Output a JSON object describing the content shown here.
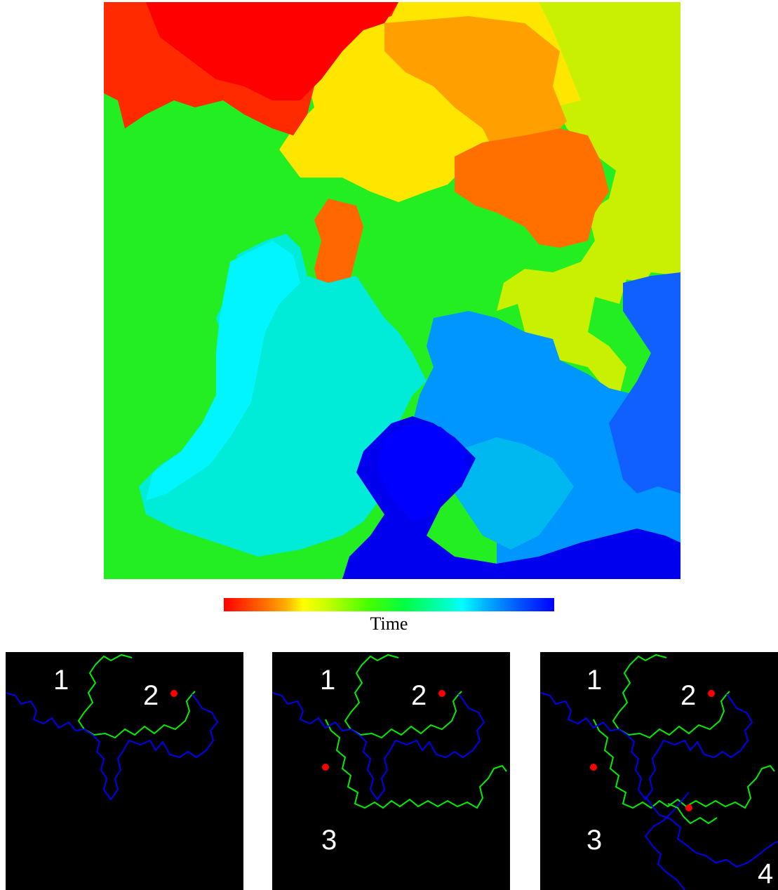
{
  "colorbar": {
    "label": "Time"
  },
  "panels": [
    {
      "labels": [
        "1",
        "2"
      ]
    },
    {
      "labels": [
        "1",
        "2",
        "3"
      ]
    },
    {
      "labels": [
        "1",
        "2",
        "3",
        "4"
      ]
    }
  ],
  "colors": {
    "front": "#00ee00",
    "trace": "#0000ee",
    "seed": "#ff0000",
    "panel_background": "#000000"
  }
}
